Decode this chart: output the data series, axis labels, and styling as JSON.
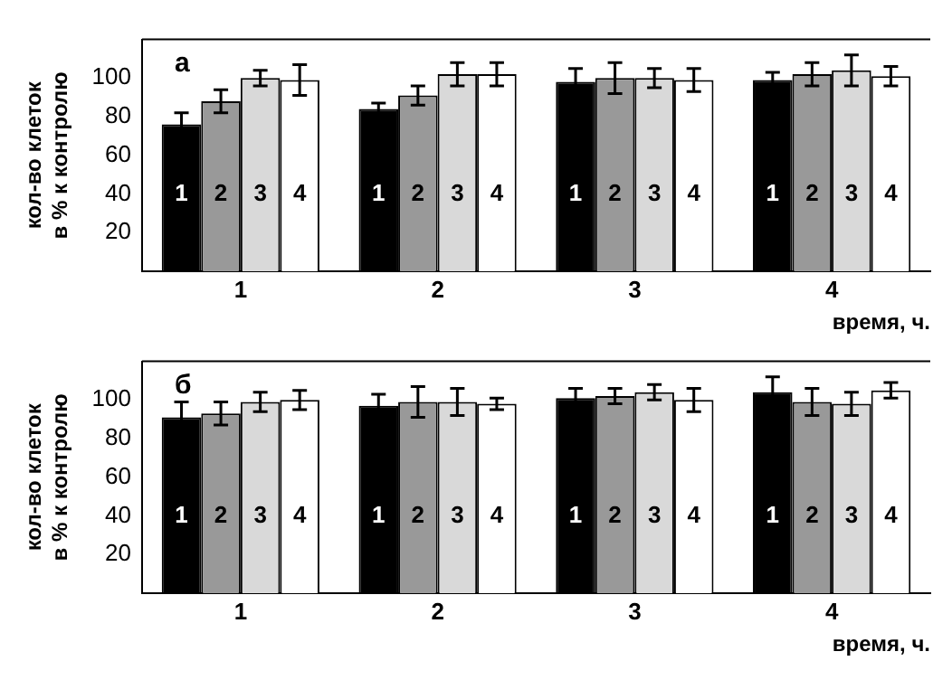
{
  "chart_data": [
    {
      "type": "bar",
      "title": "а",
      "xlabel": "время, ч.",
      "ylabel": "кол-во клеток в % к контролю",
      "categories": [
        "1",
        "2",
        "3",
        "4"
      ],
      "series": [
        {
          "name": "1",
          "color": "#000000",
          "values": [
            76,
            84,
            98,
            99
          ],
          "errors": [
            6,
            3,
            7,
            4
          ]
        },
        {
          "name": "2",
          "color": "#999999",
          "values": [
            88,
            91,
            100,
            102
          ],
          "errors": [
            6,
            5,
            8,
            6
          ]
        },
        {
          "name": "3",
          "color": "#d9d9d9",
          "values": [
            100,
            102,
            100,
            104
          ],
          "errors": [
            4,
            6,
            5,
            8
          ]
        },
        {
          "name": "4",
          "color": "#ffffff",
          "values": [
            99,
            102,
            99,
            101
          ],
          "errors": [
            8,
            6,
            6,
            5
          ]
        }
      ],
      "ylim": [
        0,
        120
      ],
      "yticks": [
        20,
        40,
        60,
        80,
        100
      ],
      "grid": false,
      "legend": false
    },
    {
      "type": "bar",
      "title": "б",
      "xlabel": "время, ч.",
      "ylabel": "кол-во клеток в % к контролю",
      "categories": [
        "1",
        "2",
        "3",
        "4"
      ],
      "series": [
        {
          "name": "1",
          "color": "#000000",
          "values": [
            91,
            97,
            101,
            104
          ],
          "errors": [
            8,
            6,
            5,
            8
          ]
        },
        {
          "name": "2",
          "color": "#999999",
          "values": [
            93,
            99,
            102,
            99
          ],
          "errors": [
            6,
            8,
            4,
            7
          ]
        },
        {
          "name": "3",
          "color": "#d9d9d9",
          "values": [
            99,
            99,
            104,
            98
          ],
          "errors": [
            5,
            7,
            4,
            6
          ]
        },
        {
          "name": "4",
          "color": "#ffffff",
          "values": [
            100,
            98,
            100,
            105
          ],
          "errors": [
            5,
            3,
            6,
            4
          ]
        }
      ],
      "ylim": [
        0,
        120
      ],
      "yticks": [
        20,
        40,
        60,
        80,
        100
      ],
      "grid": false,
      "legend": false
    }
  ]
}
